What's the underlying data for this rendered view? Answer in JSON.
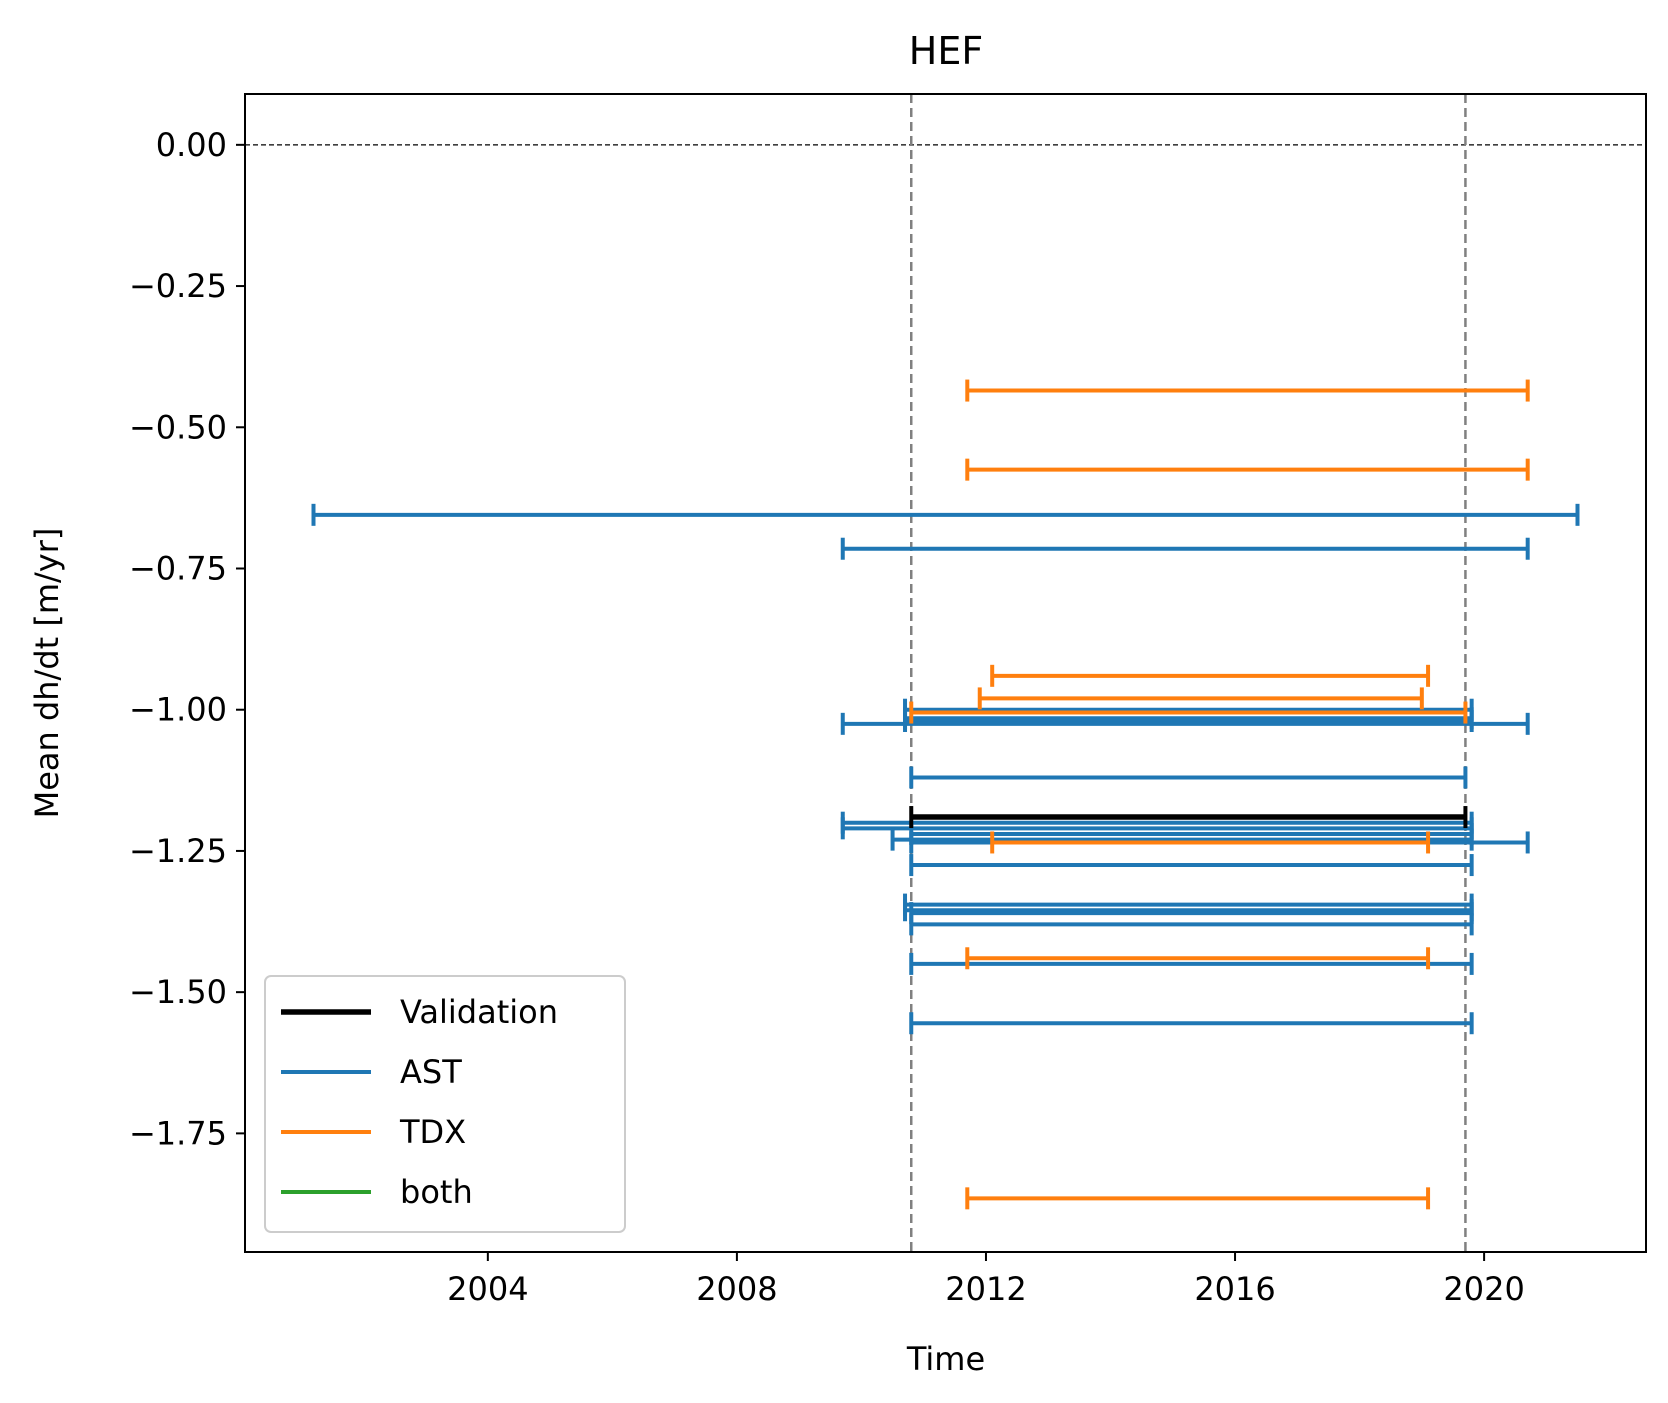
{
  "chart_data": {
    "type": "interval",
    "title": "HEF",
    "xlabel": "Time",
    "ylabel": "Mean dh/dt [m/yr]",
    "xlim": [
      2000.1,
      2022.6
    ],
    "ylim": [
      -1.96,
      0.09
    ],
    "x_ticks": [
      2004,
      2008,
      2012,
      2016,
      2020
    ],
    "x_tick_labels": [
      "2004",
      "2008",
      "2012",
      "2016",
      "2020"
    ],
    "y_ticks": [
      0.0,
      -0.25,
      -0.5,
      -0.75,
      -1.0,
      -1.25,
      -1.5,
      -1.75
    ],
    "y_tick_labels": [
      "0.00",
      "−0.25",
      "−0.50",
      "−0.75",
      "−1.00",
      "−1.25",
      "−1.50",
      "−1.75"
    ],
    "grid": false,
    "legend_position": "lower-left",
    "reference_lines": {
      "horizontal_y": 0.0,
      "vertical_x": [
        2010.8,
        2019.7
      ]
    },
    "series": [
      {
        "name": "Validation",
        "color": "#000000",
        "intervals": [
          {
            "start": 2010.8,
            "end": 2019.7,
            "value": -1.19
          }
        ]
      },
      {
        "name": "AST",
        "color": "#1f77b4",
        "intervals": [
          {
            "start": 2001.2,
            "end": 2021.5,
            "value": -0.655
          },
          {
            "start": 2009.7,
            "end": 2020.7,
            "value": -0.715
          },
          {
            "start": 2010.7,
            "end": 2019.8,
            "value": -1.0
          },
          {
            "start": 2010.7,
            "end": 2019.8,
            "value": -1.015
          },
          {
            "start": 2010.7,
            "end": 2019.8,
            "value": -1.02
          },
          {
            "start": 2009.7,
            "end": 2020.7,
            "value": -1.025
          },
          {
            "start": 2010.8,
            "end": 2019.7,
            "value": -1.12
          },
          {
            "start": 2009.7,
            "end": 2019.8,
            "value": -1.2
          },
          {
            "start": 2009.7,
            "end": 2019.8,
            "value": -1.21
          },
          {
            "start": 2010.8,
            "end": 2019.8,
            "value": -1.22
          },
          {
            "start": 2010.5,
            "end": 2019.8,
            "value": -1.23
          },
          {
            "start": 2010.8,
            "end": 2020.7,
            "value": -1.235
          },
          {
            "start": 2010.8,
            "end": 2019.8,
            "value": -1.275
          },
          {
            "start": 2010.7,
            "end": 2019.8,
            "value": -1.345
          },
          {
            "start": 2010.7,
            "end": 2019.8,
            "value": -1.355
          },
          {
            "start": 2010.8,
            "end": 2019.8,
            "value": -1.36
          },
          {
            "start": 2010.8,
            "end": 2019.8,
            "value": -1.38
          },
          {
            "start": 2010.8,
            "end": 2019.8,
            "value": -1.45
          },
          {
            "start": 2010.8,
            "end": 2019.8,
            "value": -1.555
          }
        ]
      },
      {
        "name": "TDX",
        "color": "#ff7f0e",
        "intervals": [
          {
            "start": 2011.7,
            "end": 2020.7,
            "value": -0.435
          },
          {
            "start": 2011.7,
            "end": 2020.7,
            "value": -0.575
          },
          {
            "start": 2012.1,
            "end": 2019.1,
            "value": -0.94
          },
          {
            "start": 2011.9,
            "end": 2019.0,
            "value": -0.98
          },
          {
            "start": 2010.8,
            "end": 2019.7,
            "value": -1.005
          },
          {
            "start": 2012.1,
            "end": 2019.1,
            "value": -1.235
          },
          {
            "start": 2011.7,
            "end": 2019.1,
            "value": -1.44
          },
          {
            "start": 2011.7,
            "end": 2019.1,
            "value": -1.865
          }
        ]
      },
      {
        "name": "both",
        "color": "#2ca02c",
        "intervals": []
      }
    ]
  }
}
